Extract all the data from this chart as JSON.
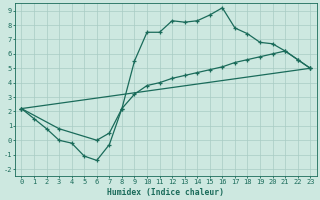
{
  "bg_color": "#cde8e0",
  "grid_color": "#a8ccc4",
  "line_color": "#1a6b5a",
  "xlabel": "Humidex (Indice chaleur)",
  "xlim": [
    -0.5,
    23.5
  ],
  "ylim": [
    -2.5,
    9.5
  ],
  "xticks": [
    0,
    1,
    2,
    3,
    4,
    5,
    6,
    7,
    8,
    9,
    10,
    11,
    12,
    13,
    14,
    15,
    16,
    17,
    18,
    19,
    20,
    21,
    22,
    23
  ],
  "yticks": [
    -2,
    -1,
    0,
    1,
    2,
    3,
    4,
    5,
    6,
    7,
    8,
    9
  ],
  "curve1_x": [
    0,
    1,
    2,
    3,
    4,
    5,
    6,
    7,
    8,
    9,
    10,
    11,
    12,
    13,
    14,
    15,
    16,
    17,
    18,
    19,
    20,
    21,
    22,
    23
  ],
  "curve1_y": [
    2.2,
    1.5,
    0.8,
    0.0,
    -0.2,
    -1.1,
    -1.4,
    -0.3,
    2.2,
    5.5,
    7.5,
    7.5,
    8.3,
    8.2,
    8.3,
    8.7,
    9.2,
    7.8,
    7.4,
    6.8,
    6.7,
    6.2,
    5.6,
    5.0
  ],
  "curve2_x": [
    0,
    3,
    6,
    7,
    8,
    9,
    10,
    11,
    12,
    13,
    14,
    15,
    16,
    17,
    18,
    19,
    20,
    21,
    22,
    23
  ],
  "curve2_y": [
    2.2,
    0.8,
    0.0,
    0.5,
    2.2,
    3.2,
    3.8,
    4.0,
    4.3,
    4.5,
    4.7,
    4.9,
    5.1,
    5.4,
    5.6,
    5.8,
    6.0,
    6.2,
    5.6,
    5.0
  ],
  "curve3_x": [
    0,
    23
  ],
  "curve3_y": [
    2.2,
    5.0
  ]
}
